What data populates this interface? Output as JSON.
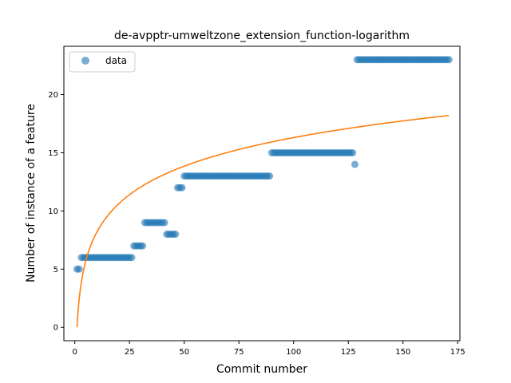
{
  "chart_data": {
    "type": "scatter",
    "title": "de-avpptr-umweltzone_extension_function-logarithm",
    "xlabel": "Commit number",
    "ylabel": "Number of instance of a feature",
    "xlim": [
      -5,
      176
    ],
    "ylim": [
      -1.15,
      24.15
    ],
    "x_ticks": [
      0,
      25,
      50,
      75,
      100,
      125,
      150,
      175
    ],
    "y_ticks": [
      0,
      5,
      10,
      15,
      20
    ],
    "grid": false,
    "legend": {
      "position": "top-left",
      "entries": [
        "data"
      ]
    },
    "colors": {
      "data": "#1f77b4",
      "fit": "#ff7f0e"
    },
    "series": [
      {
        "name": "data",
        "style": "markers",
        "runs": [
          {
            "x_start": 1,
            "x_end": 2,
            "y": 5
          },
          {
            "x_start": 3,
            "x_end": 26,
            "y": 6
          },
          {
            "x_start": 27,
            "x_end": 31,
            "y": 7
          },
          {
            "x_start": 32,
            "x_end": 41,
            "y": 9
          },
          {
            "x_start": 42,
            "x_end": 46,
            "y": 8
          },
          {
            "x_start": 47,
            "x_end": 49,
            "y": 12
          },
          {
            "x_start": 50,
            "x_end": 89,
            "y": 13
          },
          {
            "x_start": 90,
            "x_end": 127,
            "y": 15
          },
          {
            "x_start": 128,
            "x_end": 128,
            "y": 14
          },
          {
            "x_start": 129,
            "x_end": 171,
            "y": 23
          }
        ]
      },
      {
        "style": "line",
        "function": "y = 3.54 * ln(x)",
        "x_range": [
          1,
          171
        ]
      }
    ]
  }
}
